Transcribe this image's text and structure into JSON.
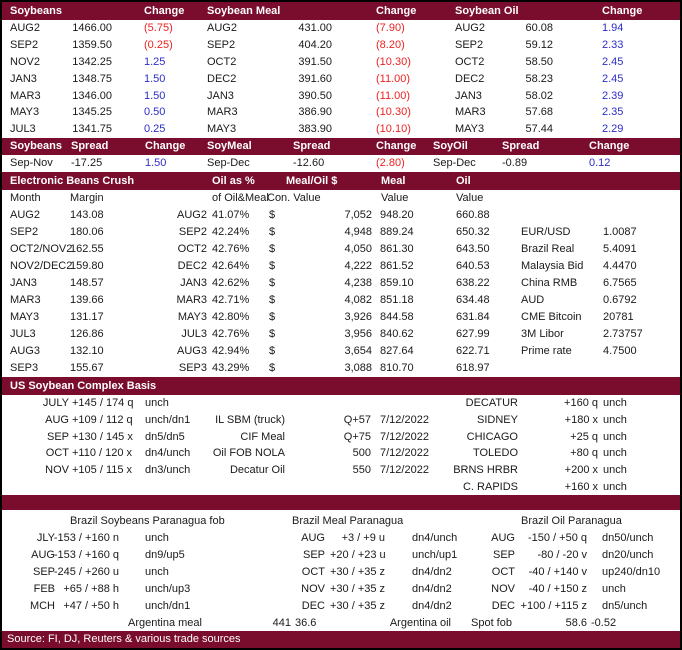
{
  "colors": {
    "header_bar": "#7a0c2d",
    "negative": "#ee2222",
    "positive": "#2d2dc8"
  },
  "futures": {
    "header": {
      "beans": "Soybeans",
      "change1": "Change",
      "meal": "Soybean Meal",
      "change2": "Change",
      "oil": "Soybean Oil",
      "change3": "Change"
    },
    "rows": [
      [
        "AUG2",
        "1466.00",
        "(5.75)",
        "AUG2",
        "431.00",
        "(7.90)",
        "AUG2",
        "60.08",
        "1.94"
      ],
      [
        "SEP2",
        "1359.50",
        "(0.25)",
        "SEP2",
        "404.20",
        "(8.20)",
        "SEP2",
        "59.12",
        "2.33"
      ],
      [
        "NOV2",
        "1342.25",
        "1.25",
        "OCT2",
        "391.50",
        "(10.30)",
        "OCT2",
        "58.50",
        "2.45"
      ],
      [
        "JAN3",
        "1348.75",
        "1.50",
        "DEC2",
        "391.60",
        "(11.00)",
        "DEC2",
        "58.23",
        "2.45"
      ],
      [
        "MAR3",
        "1346.00",
        "1.50",
        "JAN3",
        "390.50",
        "(11.00)",
        "JAN3",
        "58.02",
        "2.39"
      ],
      [
        "MAY3",
        "1345.25",
        "0.50",
        "MAR3",
        "386.90",
        "(10.30)",
        "MAR3",
        "57.68",
        "2.35"
      ],
      [
        "JUL3",
        "1341.75",
        "0.25",
        "MAY3",
        "383.90",
        "(10.10)",
        "MAY3",
        "57.44",
        "2.29"
      ]
    ]
  },
  "spreads": {
    "header": [
      "Soybeans",
      "Spread",
      "Change",
      "SoyMeal",
      "Spread",
      "Change",
      "SoyOil",
      "Spread",
      "Change"
    ],
    "rows": [
      [
        "Sep-Nov",
        "-17.25",
        "1.50",
        "Sep-Dec",
        "-12.60",
        "(2.80)",
        "Sep-Dec",
        "-0.89",
        "0.12"
      ]
    ]
  },
  "crush": {
    "title": "Electronic Beans Crush",
    "header1": {
      "oil_as_pct": "Oil as %",
      "meal_oil": "Meal/Oil $",
      "meal": "Meal",
      "oil": "Oil"
    },
    "header2": {
      "month": "Month",
      "margin": "Margin",
      "of_oil_meal": "of Oil&Meal",
      "con_value": "Con. Value",
      "meal_value": "Value",
      "oil_value": "Value"
    },
    "rows": [
      [
        "AUG2",
        "143.08",
        "AUG2",
        "41.07%",
        "$",
        "7,052",
        "948.20",
        "660.88",
        "",
        ""
      ],
      [
        "SEP2",
        "180.06",
        "SEP2",
        "42.24%",
        "$",
        "4,948",
        "889.24",
        "650.32",
        "EUR/USD",
        "1.0087"
      ],
      [
        "OCT2/NOV2",
        "162.55",
        "OCT2",
        "42.76%",
        "$",
        "4,050",
        "861.30",
        "643.50",
        "Brazil Real",
        "5.4091"
      ],
      [
        "NOV2/DEC2",
        "159.80",
        "DEC2",
        "42.64%",
        "$",
        "4,222",
        "861.52",
        "640.53",
        "Malaysia Bid",
        "4.4470"
      ],
      [
        "JAN3",
        "148.57",
        "JAN3",
        "42.62%",
        "$",
        "4,238",
        "859.10",
        "638.22",
        "China RMB",
        "6.7565"
      ],
      [
        "MAR3",
        "139.66",
        "MAR3",
        "42.71%",
        "$",
        "4,082",
        "851.18",
        "634.48",
        "AUD",
        "0.6792"
      ],
      [
        "MAY3",
        "131.17",
        "MAY3",
        "42.80%",
        "$",
        "3,926",
        "844.58",
        "631.84",
        "CME Bitcoin",
        "20781"
      ],
      [
        "JUL3",
        "126.86",
        "JUL3",
        "42.76%",
        "$",
        "3,956",
        "840.62",
        "627.99",
        "3M Libor",
        "2.73757"
      ],
      [
        "AUG3",
        "132.10",
        "AUG3",
        "42.94%",
        "$",
        "3,654",
        "827.64",
        "622.71",
        "Prime rate",
        "4.7500"
      ],
      [
        "SEP3",
        "155.67",
        "SEP3",
        "43.29%",
        "$",
        "3,088",
        "810.70",
        "618.97",
        "",
        ""
      ]
    ]
  },
  "basis": {
    "title": "US Soybean Complex Basis",
    "rows": [
      [
        "JULY",
        "+145 / 174 q",
        "unch",
        "",
        "",
        "",
        "DECATUR",
        "+160 q",
        "unch"
      ],
      [
        "AUG",
        "+109 / 112 q",
        "unch/dn1",
        "IL SBM (truck)",
        "Q+57",
        "7/12/2022",
        "SIDNEY",
        "+180 x",
        "unch"
      ],
      [
        "SEP",
        "+130 / 145 x",
        "dn5/dn5",
        "CIF Meal",
        "Q+75",
        "7/12/2022",
        "CHICAGO",
        "+25 q",
        "unch"
      ],
      [
        "OCT",
        "+110 / 120 x",
        "dn4/unch",
        "Oil FOB NOLA",
        "500",
        "7/12/2022",
        "TOLEDO",
        "+80 q",
        "unch"
      ],
      [
        "NOV",
        "+105 / 115 x",
        "dn3/unch",
        "Decatur Oil",
        "550",
        "7/12/2022",
        "BRNS HRBR",
        "+200 x",
        "unch"
      ],
      [
        "",
        "",
        "",
        "",
        "",
        "",
        "C. RAPIDS",
        "+160 x",
        "unch"
      ]
    ]
  },
  "brazil": {
    "titles": [
      "Brazil Soybeans Paranagua fob",
      "Brazil Meal Paranagua",
      "Brazil Oil Paranagua"
    ],
    "rows": [
      [
        "JLY",
        "-153 / +160 n",
        "unch",
        "AUG",
        "+3 / +9 u",
        "dn4/unch",
        "AUG",
        "-150 / +50 q",
        "dn50/unch"
      ],
      [
        "AUG",
        "-153 / +160 q",
        "dn9/up5",
        "SEP",
        "+20 / +23 u",
        "unch/up1",
        "SEP",
        "-80 / -20 v",
        "dn20/unch"
      ],
      [
        "SEP",
        "-245 / +260 u",
        "unch",
        "OCT",
        "+30 / +35 z",
        "dn4/dn2",
        "OCT",
        "-40 / +140 v",
        "up240/dn10"
      ],
      [
        "FEB",
        "+65 / +88 h",
        "unch/up3",
        "NOV",
        "+30 / +35 z",
        "dn4/dn2",
        "NOV",
        "-40 / +150 z",
        "unch"
      ],
      [
        "MCH",
        "+47 / +50 h",
        "unch/dn1",
        "DEC",
        "+30 / +35 z",
        "dn4/dn2",
        "DEC",
        "+100 / +115 z",
        "dn5/unch"
      ]
    ],
    "bottom": [
      "Argentina meal",
      "441",
      "36.6",
      "Argentina oil",
      "Spot fob",
      "58.6",
      "-0.52"
    ]
  },
  "footer": {
    "source": "Source: FI, DJ, Reuters & various trade sources"
  }
}
